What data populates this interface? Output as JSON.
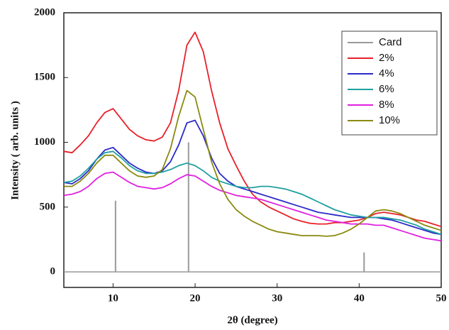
{
  "chart_data": {
    "type": "line",
    "xlabel": "2θ (degree)",
    "ylabel": "Intensity ( arb. units )",
    "xlim": [
      4,
      50
    ],
    "ylim": [
      -120,
      2000
    ],
    "xticks": [
      10,
      20,
      30,
      40,
      50
    ],
    "yticks": [
      0,
      500,
      1000,
      1500,
      2000
    ],
    "zero_line": true,
    "legend": "upper right",
    "series": [
      {
        "name": "Card",
        "color": "#9a9a9a",
        "style": "stick",
        "x": [
          10.3,
          19.2,
          40.6
        ],
        "values": [
          550,
          1000,
          150
        ]
      },
      {
        "name": "2%",
        "color": "#e8202a",
        "x": [
          4,
          5,
          6,
          7,
          8,
          9,
          10,
          11,
          12,
          13,
          14,
          15,
          16,
          17,
          18,
          19,
          20,
          21,
          22,
          23,
          24,
          25,
          26,
          27,
          28,
          29,
          30,
          31,
          32,
          33,
          34,
          35,
          36,
          37,
          38,
          39,
          40,
          41,
          42,
          43,
          44,
          45,
          46,
          47,
          48,
          49,
          50
        ],
        "values": [
          930,
          920,
          980,
          1050,
          1150,
          1230,
          1260,
          1180,
          1100,
          1050,
          1020,
          1010,
          1040,
          1150,
          1400,
          1750,
          1850,
          1700,
          1400,
          1150,
          950,
          820,
          700,
          600,
          540,
          500,
          470,
          440,
          410,
          390,
          375,
          370,
          370,
          380,
          380,
          390,
          400,
          420,
          450,
          460,
          450,
          440,
          420,
          400,
          390,
          370,
          350
        ]
      },
      {
        "name": "4%",
        "color": "#2a2ac8",
        "x": [
          4,
          5,
          6,
          7,
          8,
          9,
          10,
          11,
          12,
          13,
          14,
          15,
          16,
          17,
          18,
          19,
          20,
          21,
          22,
          23,
          24,
          25,
          26,
          27,
          28,
          29,
          30,
          31,
          32,
          33,
          34,
          35,
          36,
          37,
          38,
          39,
          40,
          41,
          42,
          43,
          44,
          45,
          46,
          47,
          48,
          49,
          50
        ],
        "values": [
          690,
          680,
          720,
          780,
          870,
          940,
          960,
          900,
          840,
          800,
          770,
          760,
          780,
          850,
          980,
          1150,
          1170,
          1050,
          880,
          760,
          700,
          660,
          640,
          620,
          600,
          580,
          560,
          540,
          520,
          500,
          480,
          460,
          450,
          440,
          430,
          420,
          420,
          420,
          420,
          410,
          400,
          380,
          360,
          340,
          320,
          300,
          290
        ]
      },
      {
        "name": "6%",
        "color": "#20a0a0",
        "x": [
          4,
          5,
          6,
          7,
          8,
          9,
          10,
          11,
          12,
          13,
          14,
          15,
          16,
          17,
          18,
          19,
          20,
          21,
          22,
          23,
          24,
          25,
          26,
          27,
          28,
          29,
          30,
          31,
          32,
          33,
          34,
          35,
          36,
          37,
          38,
          39,
          40,
          41,
          42,
          43,
          44,
          45,
          46,
          47,
          48,
          49,
          50
        ],
        "values": [
          690,
          700,
          740,
          800,
          870,
          920,
          930,
          880,
          820,
          780,
          760,
          760,
          770,
          790,
          820,
          840,
          820,
          780,
          730,
          700,
          680,
          660,
          650,
          650,
          660,
          660,
          650,
          640,
          620,
          600,
          570,
          540,
          510,
          480,
          460,
          440,
          430,
          420,
          420,
          420,
          410,
          400,
          380,
          360,
          330,
          310,
          290
        ]
      },
      {
        "name": "8%",
        "color": "#e020e0",
        "x": [
          4,
          5,
          6,
          7,
          8,
          9,
          10,
          11,
          12,
          13,
          14,
          15,
          16,
          17,
          18,
          19,
          20,
          21,
          22,
          23,
          24,
          25,
          26,
          27,
          28,
          29,
          30,
          31,
          32,
          33,
          34,
          35,
          36,
          37,
          38,
          39,
          40,
          41,
          42,
          43,
          44,
          45,
          46,
          47,
          48,
          49,
          50
        ],
        "values": [
          590,
          600,
          620,
          660,
          720,
          760,
          770,
          730,
          690,
          660,
          650,
          640,
          650,
          680,
          720,
          750,
          740,
          700,
          660,
          630,
          610,
          590,
          580,
          570,
          560,
          540,
          520,
          500,
          480,
          460,
          440,
          420,
          400,
          390,
          380,
          370,
          370,
          370,
          360,
          360,
          340,
          320,
          300,
          280,
          260,
          250,
          240
        ]
      },
      {
        "name": "10%",
        "color": "#8a8a10",
        "x": [
          4,
          5,
          6,
          7,
          8,
          9,
          10,
          11,
          12,
          13,
          14,
          15,
          16,
          17,
          18,
          19,
          20,
          21,
          22,
          23,
          24,
          25,
          26,
          27,
          28,
          29,
          30,
          31,
          32,
          33,
          34,
          35,
          36,
          37,
          38,
          39,
          40,
          41,
          42,
          43,
          44,
          45,
          46,
          47,
          48,
          49,
          50
        ],
        "values": [
          660,
          660,
          700,
          760,
          840,
          900,
          900,
          840,
          780,
          740,
          730,
          740,
          790,
          950,
          1200,
          1400,
          1350,
          1100,
          850,
          680,
          560,
          480,
          430,
          390,
          360,
          330,
          310,
          300,
          290,
          280,
          280,
          280,
          275,
          280,
          300,
          330,
          370,
          420,
          470,
          480,
          470,
          450,
          420,
          390,
          360,
          340,
          320
        ]
      }
    ]
  }
}
